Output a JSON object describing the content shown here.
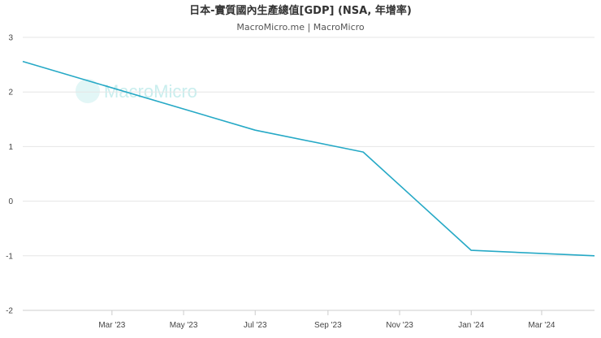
{
  "chart_data": {
    "type": "line",
    "title": "日本-實質國內生產總值[GDP] (NSA, 年增率)",
    "subtitle": "MacroMicro.me | MacroMicro",
    "watermark": "MacroMicro",
    "xlabel": "",
    "ylabel": "",
    "x_tick_labels": [
      "Mar '23",
      "May '23",
      "Jul '23",
      "Sep '23",
      "Nov '23",
      "Jan '24",
      "Mar '24"
    ],
    "y_ticks": [
      3,
      2,
      1,
      0,
      -1,
      -2
    ],
    "ylim": [
      -2,
      3
    ],
    "grid": true,
    "line_color": "#26a9c6",
    "series": [
      {
        "points": [
          {
            "x": "2022-12-15",
            "y": 2.56
          },
          {
            "x": "2023-07-01",
            "y": 1.3
          },
          {
            "x": "2023-10-01",
            "y": 0.9
          },
          {
            "x": "2024-01-01",
            "y": -0.9
          },
          {
            "x": "2024-04-15",
            "y": -1.0
          }
        ]
      }
    ]
  }
}
